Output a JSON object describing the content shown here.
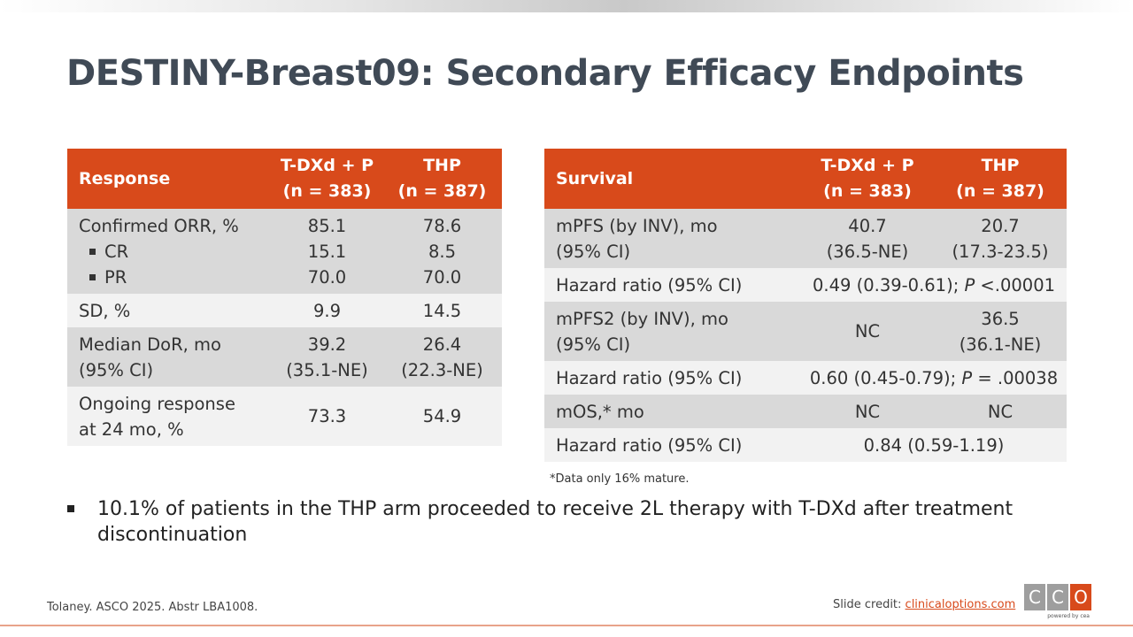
{
  "title": "DESTINY-Breast09: Secondary Efficacy Endpoints",
  "response_table": {
    "headers": [
      "Response",
      "T-DXd + P",
      "(n = 383)",
      "THP",
      "(n = 387)"
    ],
    "rows": {
      "orr_label": "Confirmed ORR, %",
      "cr_label": "CR",
      "pr_label": "PR",
      "orr_a": "85.1",
      "orr_b": "78.6",
      "cr_a": "15.1",
      "cr_b": "8.5",
      "pr_a": "70.0",
      "pr_b": "70.0",
      "sd_label": "SD, %",
      "sd_a": "9.9",
      "sd_b": "14.5",
      "dor_label1": "Median DoR, mo",
      "dor_label2": "(95% CI)",
      "dor_a1": "39.2",
      "dor_a2": "(35.1-NE)",
      "dor_b1": "26.4",
      "dor_b2": "(22.3-NE)",
      "ongoing_label1": "Ongoing response",
      "ongoing_label2": "at 24 mo, %",
      "ongoing_a": "73.3",
      "ongoing_b": "54.9"
    }
  },
  "survival_table": {
    "headers": [
      "Survival",
      "T-DXd + P",
      "(n = 383)",
      "THP",
      "(n = 387)"
    ],
    "rows": {
      "mpfs_label1": "mPFS (by INV), mo",
      "mpfs_label2": "(95% CI)",
      "mpfs_a1": "40.7",
      "mpfs_a2": "(36.5-NE)",
      "mpfs_b1": "20.7",
      "mpfs_b2": "(17.3-23.5)",
      "hr1_label": "Hazard ratio (95% CI)",
      "hr1_value": "0.49 (0.39-0.61);",
      "hr1_p_italic": "P",
      "hr1_p_value": " <.00001",
      "mpfs2_label1": "mPFS2 (by INV), mo",
      "mpfs2_label2": "(95% CI)",
      "mpfs2_a": "NC",
      "mpfs2_b1": "36.5",
      "mpfs2_b2": "(36.1-NE)",
      "hr2_label": "Hazard ratio (95% CI)",
      "hr2_value": "0.60 (0.45-0.79);",
      "hr2_p_italic": "P",
      "hr2_p_value": " = .00038",
      "mos_label": "mOS,* mo",
      "mos_a": "NC",
      "mos_b": "NC",
      "hr3_label": "Hazard ratio (95% CI)",
      "hr3_value": "0.84 (0.59-1.19)"
    }
  },
  "footnote": "*Data only 16% mature.",
  "bullet": "10.1% of patients in the THP arm proceeded to receive 2L therapy with T-DXd after treatment discontinuation",
  "citation": "Tolaney. ASCO 2025. Abstr LBA1008.",
  "credit_prefix": "Slide credit: ",
  "credit_link": "clinicaloptions.com",
  "logo": {
    "letters": [
      "C",
      "C",
      "O"
    ],
    "tagline": "powered by cea"
  },
  "colors": {
    "accent": "#d84a1b",
    "title": "#404a56",
    "row_dark": "#d9d9d9",
    "row_light": "#f2f2f2"
  }
}
